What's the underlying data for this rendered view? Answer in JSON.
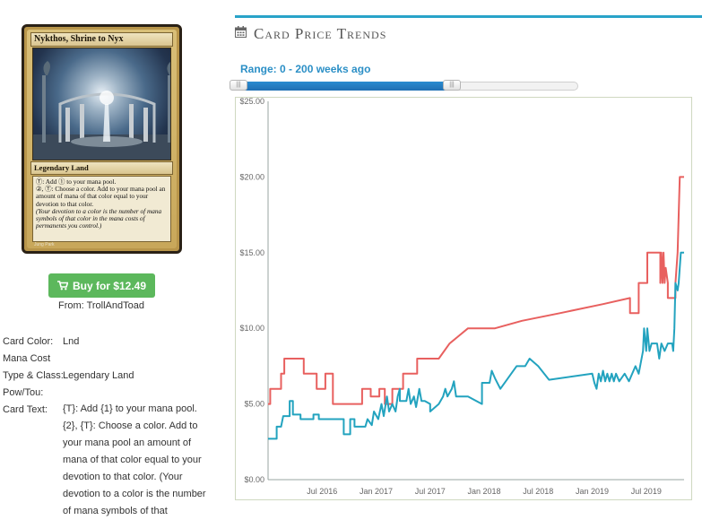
{
  "card": {
    "name": "Nykthos, Shrine to Nyx",
    "type_line": "Legendary Land",
    "text_line1": "Ⓣ: Add ① to your mana pool.",
    "text_line2": "②, Ⓣ: Choose a color. Add to your mana pool an amount of mana of that color equal to your devotion to that color.",
    "text_reminder": "(Your devotion to a color is the number of mana symbols of that color in the mana costs of permanents you control.)",
    "artist": "Jung Park"
  },
  "buy": {
    "label": "Buy for $12.49",
    "icon": "cart-icon"
  },
  "from": "From: TrollAndToad",
  "details": {
    "card_color_label": "Card Color:",
    "card_color": "Lnd",
    "mana_cost_label": "Mana Cost",
    "type_class_label": "Type & Class:",
    "type_class": "Legendary Land",
    "pow_tou_label": "Pow/Tou:",
    "card_text_label": "Card Text:",
    "card_text": "{T}: Add {1} to your mana pool. {2}, {T}: Choose a color. Add to your mana pool an amount of mana of that color equal to your devotion to that color. (Your devotion to a color is the number of mana symbols of that"
  },
  "section": {
    "title": "Card Price Trends",
    "icon": "calendar-icon"
  },
  "range": {
    "label": "Range: 0 - 200 weeks ago",
    "min_weeks": 0,
    "max_weeks": 200,
    "handle_glyph": "|||",
    "selected_fraction": 0.64
  },
  "colors": {
    "accent": "#29a3c9",
    "buy_button": "#5cb85c",
    "range_text": "#2b8fc6",
    "series_red": "#e8605f",
    "series_teal": "#23a3bf"
  },
  "chart_data": {
    "type": "line",
    "y_ticks": [
      "$25.00",
      "$20.00",
      "$15.00",
      "$10.00",
      "$5.00",
      "$0.00"
    ],
    "y_tick_values": [
      25,
      20,
      15,
      10,
      5,
      0
    ],
    "ylim": [
      0,
      25
    ],
    "x_ticks": [
      "Jul 2016",
      "Jan 2017",
      "Jul 2017",
      "Jan 2018",
      "Jul 2018",
      "Jan 2019",
      "Jul 2019"
    ],
    "x_tick_values": [
      2016.5,
      2017.0,
      2017.5,
      2018.0,
      2018.5,
      2019.0,
      2019.5
    ],
    "xlim": [
      2016.0,
      2019.85
    ],
    "grid": false,
    "series": [
      {
        "color": "#e8605f",
        "points": [
          [
            2016.0,
            5.0
          ],
          [
            2016.02,
            5.0
          ],
          [
            2016.02,
            6.0
          ],
          [
            2016.12,
            6.0
          ],
          [
            2016.12,
            7.0
          ],
          [
            2016.15,
            7.0
          ],
          [
            2016.15,
            8.0
          ],
          [
            2016.33,
            8.0
          ],
          [
            2016.33,
            7.0
          ],
          [
            2016.45,
            7.0
          ],
          [
            2016.45,
            6.0
          ],
          [
            2016.53,
            6.0
          ],
          [
            2016.53,
            7.0
          ],
          [
            2016.6,
            7.0
          ],
          [
            2016.6,
            5.0
          ],
          [
            2016.87,
            5.0
          ],
          [
            2016.87,
            6.0
          ],
          [
            2016.95,
            6.0
          ],
          [
            2016.95,
            5.5
          ],
          [
            2017.03,
            5.5
          ],
          [
            2017.03,
            6.0
          ],
          [
            2017.08,
            6.0
          ],
          [
            2017.08,
            5.0
          ],
          [
            2017.15,
            5.0
          ],
          [
            2017.15,
            6.0
          ],
          [
            2017.25,
            6.0
          ],
          [
            2017.25,
            7.0
          ],
          [
            2017.38,
            7.0
          ],
          [
            2017.38,
            8.0
          ],
          [
            2017.58,
            8.0
          ],
          [
            2017.68,
            9.0
          ],
          [
            2017.85,
            10.0
          ],
          [
            2018.1,
            10.0
          ],
          [
            2018.35,
            10.5
          ],
          [
            2018.7,
            11.0
          ],
          [
            2019.1,
            11.6
          ],
          [
            2019.35,
            12.0
          ],
          [
            2019.35,
            11.0
          ],
          [
            2019.43,
            11.0
          ],
          [
            2019.43,
            13.0
          ],
          [
            2019.51,
            13.0
          ],
          [
            2019.51,
            15.0
          ],
          [
            2019.63,
            15.0
          ],
          [
            2019.63,
            13.0
          ],
          [
            2019.64,
            15.0
          ],
          [
            2019.65,
            13.0
          ],
          [
            2019.66,
            15.0
          ],
          [
            2019.67,
            13.0
          ],
          [
            2019.68,
            14.0
          ],
          [
            2019.7,
            13.0
          ],
          [
            2019.7,
            12.0
          ],
          [
            2019.77,
            12.0
          ],
          [
            2019.77,
            13.0
          ],
          [
            2019.79,
            15.0
          ],
          [
            2019.81,
            20.0
          ],
          [
            2019.85,
            20.0
          ]
        ]
      },
      {
        "color": "#23a3bf",
        "points": [
          [
            2016.0,
            2.7
          ],
          [
            2016.08,
            2.7
          ],
          [
            2016.08,
            3.5
          ],
          [
            2016.12,
            3.5
          ],
          [
            2016.14,
            4.2
          ],
          [
            2016.2,
            4.2
          ],
          [
            2016.2,
            5.2
          ],
          [
            2016.23,
            5.2
          ],
          [
            2016.23,
            4.3
          ],
          [
            2016.3,
            4.3
          ],
          [
            2016.3,
            4.0
          ],
          [
            2016.42,
            4.0
          ],
          [
            2016.42,
            4.3
          ],
          [
            2016.47,
            4.3
          ],
          [
            2016.47,
            4.0
          ],
          [
            2016.7,
            4.0
          ],
          [
            2016.7,
            3.0
          ],
          [
            2016.76,
            3.0
          ],
          [
            2016.76,
            4.0
          ],
          [
            2016.8,
            4.0
          ],
          [
            2016.8,
            3.5
          ],
          [
            2016.9,
            3.5
          ],
          [
            2016.92,
            4.0
          ],
          [
            2016.96,
            3.6
          ],
          [
            2016.98,
            4.5
          ],
          [
            2017.02,
            4.0
          ],
          [
            2017.05,
            5.0
          ],
          [
            2017.07,
            4.2
          ],
          [
            2017.1,
            5.5
          ],
          [
            2017.12,
            4.5
          ],
          [
            2017.15,
            5.0
          ],
          [
            2017.18,
            4.5
          ],
          [
            2017.2,
            5.5
          ],
          [
            2017.22,
            6.0
          ],
          [
            2017.22,
            5.2
          ],
          [
            2017.28,
            5.2
          ],
          [
            2017.3,
            6.0
          ],
          [
            2017.32,
            5.0
          ],
          [
            2017.35,
            5.5
          ],
          [
            2017.37,
            4.8
          ],
          [
            2017.4,
            6.0
          ],
          [
            2017.42,
            5.2
          ],
          [
            2017.45,
            5.2
          ],
          [
            2017.5,
            5.0
          ],
          [
            2017.5,
            4.5
          ],
          [
            2017.58,
            5.0
          ],
          [
            2017.62,
            5.5
          ],
          [
            2017.64,
            6.0
          ],
          [
            2017.66,
            5.5
          ],
          [
            2017.7,
            6.0
          ],
          [
            2017.72,
            6.5
          ],
          [
            2017.74,
            5.5
          ],
          [
            2017.85,
            5.5
          ],
          [
            2017.9,
            5.3
          ],
          [
            2017.98,
            5.0
          ],
          [
            2017.98,
            6.4
          ],
          [
            2018.05,
            6.4
          ],
          [
            2018.07,
            7.2
          ],
          [
            2018.1,
            6.7
          ],
          [
            2018.15,
            6.0
          ],
          [
            2018.3,
            7.5
          ],
          [
            2018.38,
            7.5
          ],
          [
            2018.42,
            8.0
          ],
          [
            2018.5,
            7.5
          ],
          [
            2018.6,
            6.6
          ],
          [
            2019.0,
            7.0
          ],
          [
            2019.02,
            6.4
          ],
          [
            2019.04,
            6.0
          ],
          [
            2019.06,
            7.0
          ],
          [
            2019.08,
            6.5
          ],
          [
            2019.1,
            7.2
          ],
          [
            2019.12,
            6.5
          ],
          [
            2019.14,
            7.0
          ],
          [
            2019.16,
            6.5
          ],
          [
            2019.18,
            7.0
          ],
          [
            2019.2,
            6.5
          ],
          [
            2019.22,
            7.0
          ],
          [
            2019.25,
            6.5
          ],
          [
            2019.3,
            7.0
          ],
          [
            2019.34,
            6.5
          ],
          [
            2019.4,
            7.5
          ],
          [
            2019.43,
            7.0
          ],
          [
            2019.47,
            8.5
          ],
          [
            2019.48,
            10.0
          ],
          [
            2019.5,
            8.5
          ],
          [
            2019.51,
            10.0
          ],
          [
            2019.53,
            8.5
          ],
          [
            2019.55,
            9.0
          ],
          [
            2019.6,
            9.0
          ],
          [
            2019.62,
            8.0
          ],
          [
            2019.64,
            9.0
          ],
          [
            2019.67,
            8.5
          ],
          [
            2019.7,
            9.0
          ],
          [
            2019.74,
            9.0
          ],
          [
            2019.75,
            8.5
          ],
          [
            2019.76,
            10.0
          ],
          [
            2019.77,
            13.0
          ],
          [
            2019.79,
            12.5
          ],
          [
            2019.8,
            13.0
          ],
          [
            2019.81,
            14.0
          ],
          [
            2019.82,
            15.0
          ],
          [
            2019.85,
            15.0
          ]
        ]
      }
    ]
  }
}
